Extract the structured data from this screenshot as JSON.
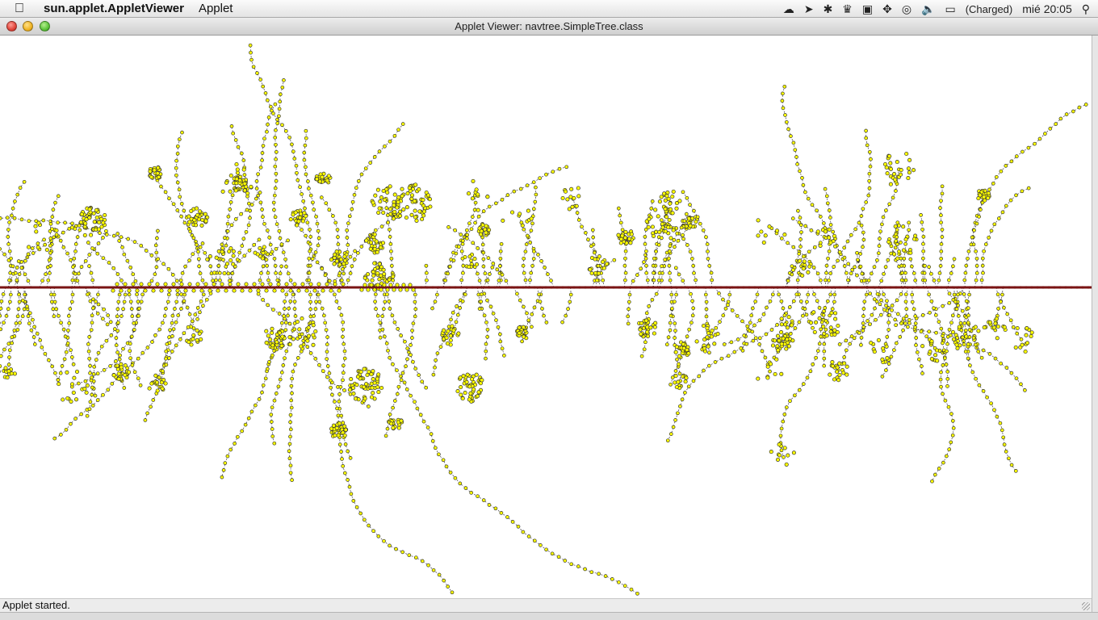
{
  "menubar": {
    "apple_icon": "apple-icon",
    "app_name": "sun.applet.AppletViewer",
    "menus": [
      "Applet"
    ],
    "status": {
      "battery_text": "(Charged)",
      "clock": "mié 20:05"
    }
  },
  "window": {
    "title": "Applet Viewer: navtree.SimpleTree.class"
  },
  "statusbar": {
    "text": "Applet started."
  },
  "tree": {
    "node_fill": "#ffff00",
    "node_stroke": "#333333",
    "edge_color": "#222222",
    "axis_color": "#7a1414"
  }
}
